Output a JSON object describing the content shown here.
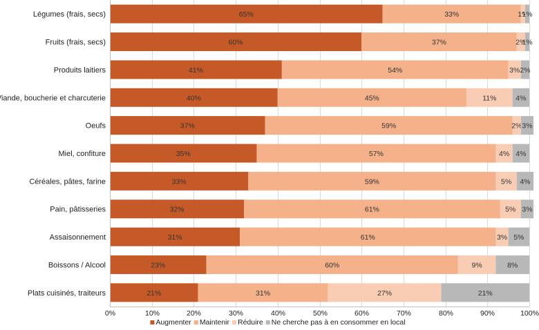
{
  "chart_data": {
    "type": "bar",
    "orientation": "horizontal",
    "stacked": true,
    "percent": true,
    "title": "",
    "xlabel": "",
    "ylabel": "",
    "xlim": [
      0,
      100
    ],
    "x_ticks": [
      "0%",
      "10%",
      "20%",
      "30%",
      "40%",
      "50%",
      "60%",
      "70%",
      "80%",
      "90%",
      "100%"
    ],
    "grid": true,
    "legend_position": "bottom",
    "categories": [
      "Légumes (frais, secs)",
      "Fruits (frais, secs)",
      "Produits laitiers",
      "Viande, boucherie et charcuterie",
      "Oeufs",
      "Miel, confiture",
      "Céréales, pâtes, farine",
      "Pain, pâtisseries",
      "Assaisonnement",
      "Boissons / Alcool",
      "Plats cuisinés, traiteurs"
    ],
    "series": [
      {
        "name": "Augmenter",
        "color": "#c55a28",
        "values": [
          65,
          60,
          41,
          40,
          37,
          35,
          33,
          32,
          31,
          23,
          21
        ],
        "labels": [
          "65%",
          "60%",
          "41%",
          "40%",
          "37%",
          "35%",
          "33%",
          "32%",
          "31%",
          "23%",
          "21%"
        ]
      },
      {
        "name": "Maintenir",
        "color": "#f4b18a",
        "values": [
          33,
          37,
          54,
          45,
          59,
          57,
          59,
          61,
          61,
          60,
          31
        ],
        "labels": [
          "33%",
          "37%",
          "54%",
          "45%",
          "59%",
          "57%",
          "59%",
          "61%",
          "61%",
          "60%",
          "31%"
        ]
      },
      {
        "name": "Réduire",
        "color": "#f9cdb4",
        "values": [
          1,
          2,
          3,
          11,
          2,
          4,
          5,
          5,
          3,
          9,
          27
        ],
        "labels": [
          "1%",
          "2%",
          "3%",
          "11%",
          "2%",
          "4%",
          "5%",
          "5%",
          "3%",
          "9%",
          "27%"
        ]
      },
      {
        "name": "Ne cherche pas à en consommer en local",
        "color": "#b8b8b8",
        "values": [
          1,
          1,
          2,
          4,
          3,
          4,
          4,
          3,
          5,
          8,
          21
        ],
        "labels": [
          "1%",
          "1%",
          "2%",
          "4%",
          "3%",
          "4%",
          "4%",
          "3%",
          "5%",
          "8%",
          "21%"
        ]
      }
    ]
  }
}
